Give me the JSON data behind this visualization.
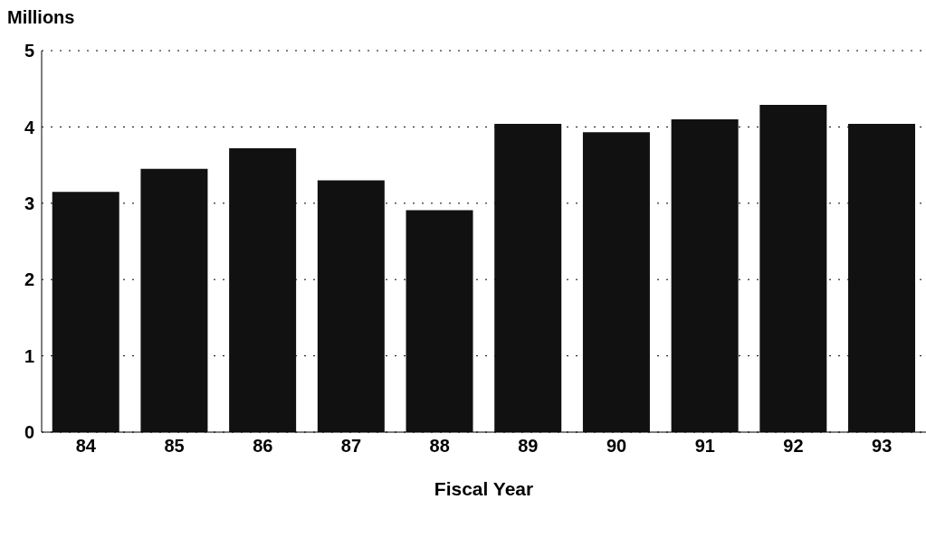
{
  "chart_data": {
    "type": "bar",
    "ylabel": "Millions",
    "xlabel": "Fiscal Year",
    "categories": [
      "84",
      "85",
      "86",
      "87",
      "88",
      "89",
      "90",
      "91",
      "92",
      "93"
    ],
    "values": [
      3.15,
      3.45,
      3.72,
      3.3,
      2.91,
      4.04,
      3.93,
      4.1,
      4.29,
      4.04
    ],
    "color": "#111111",
    "ylim": [
      0,
      5
    ],
    "yticks": [
      0,
      1,
      2,
      3,
      4,
      5
    ],
    "grid": "y"
  }
}
